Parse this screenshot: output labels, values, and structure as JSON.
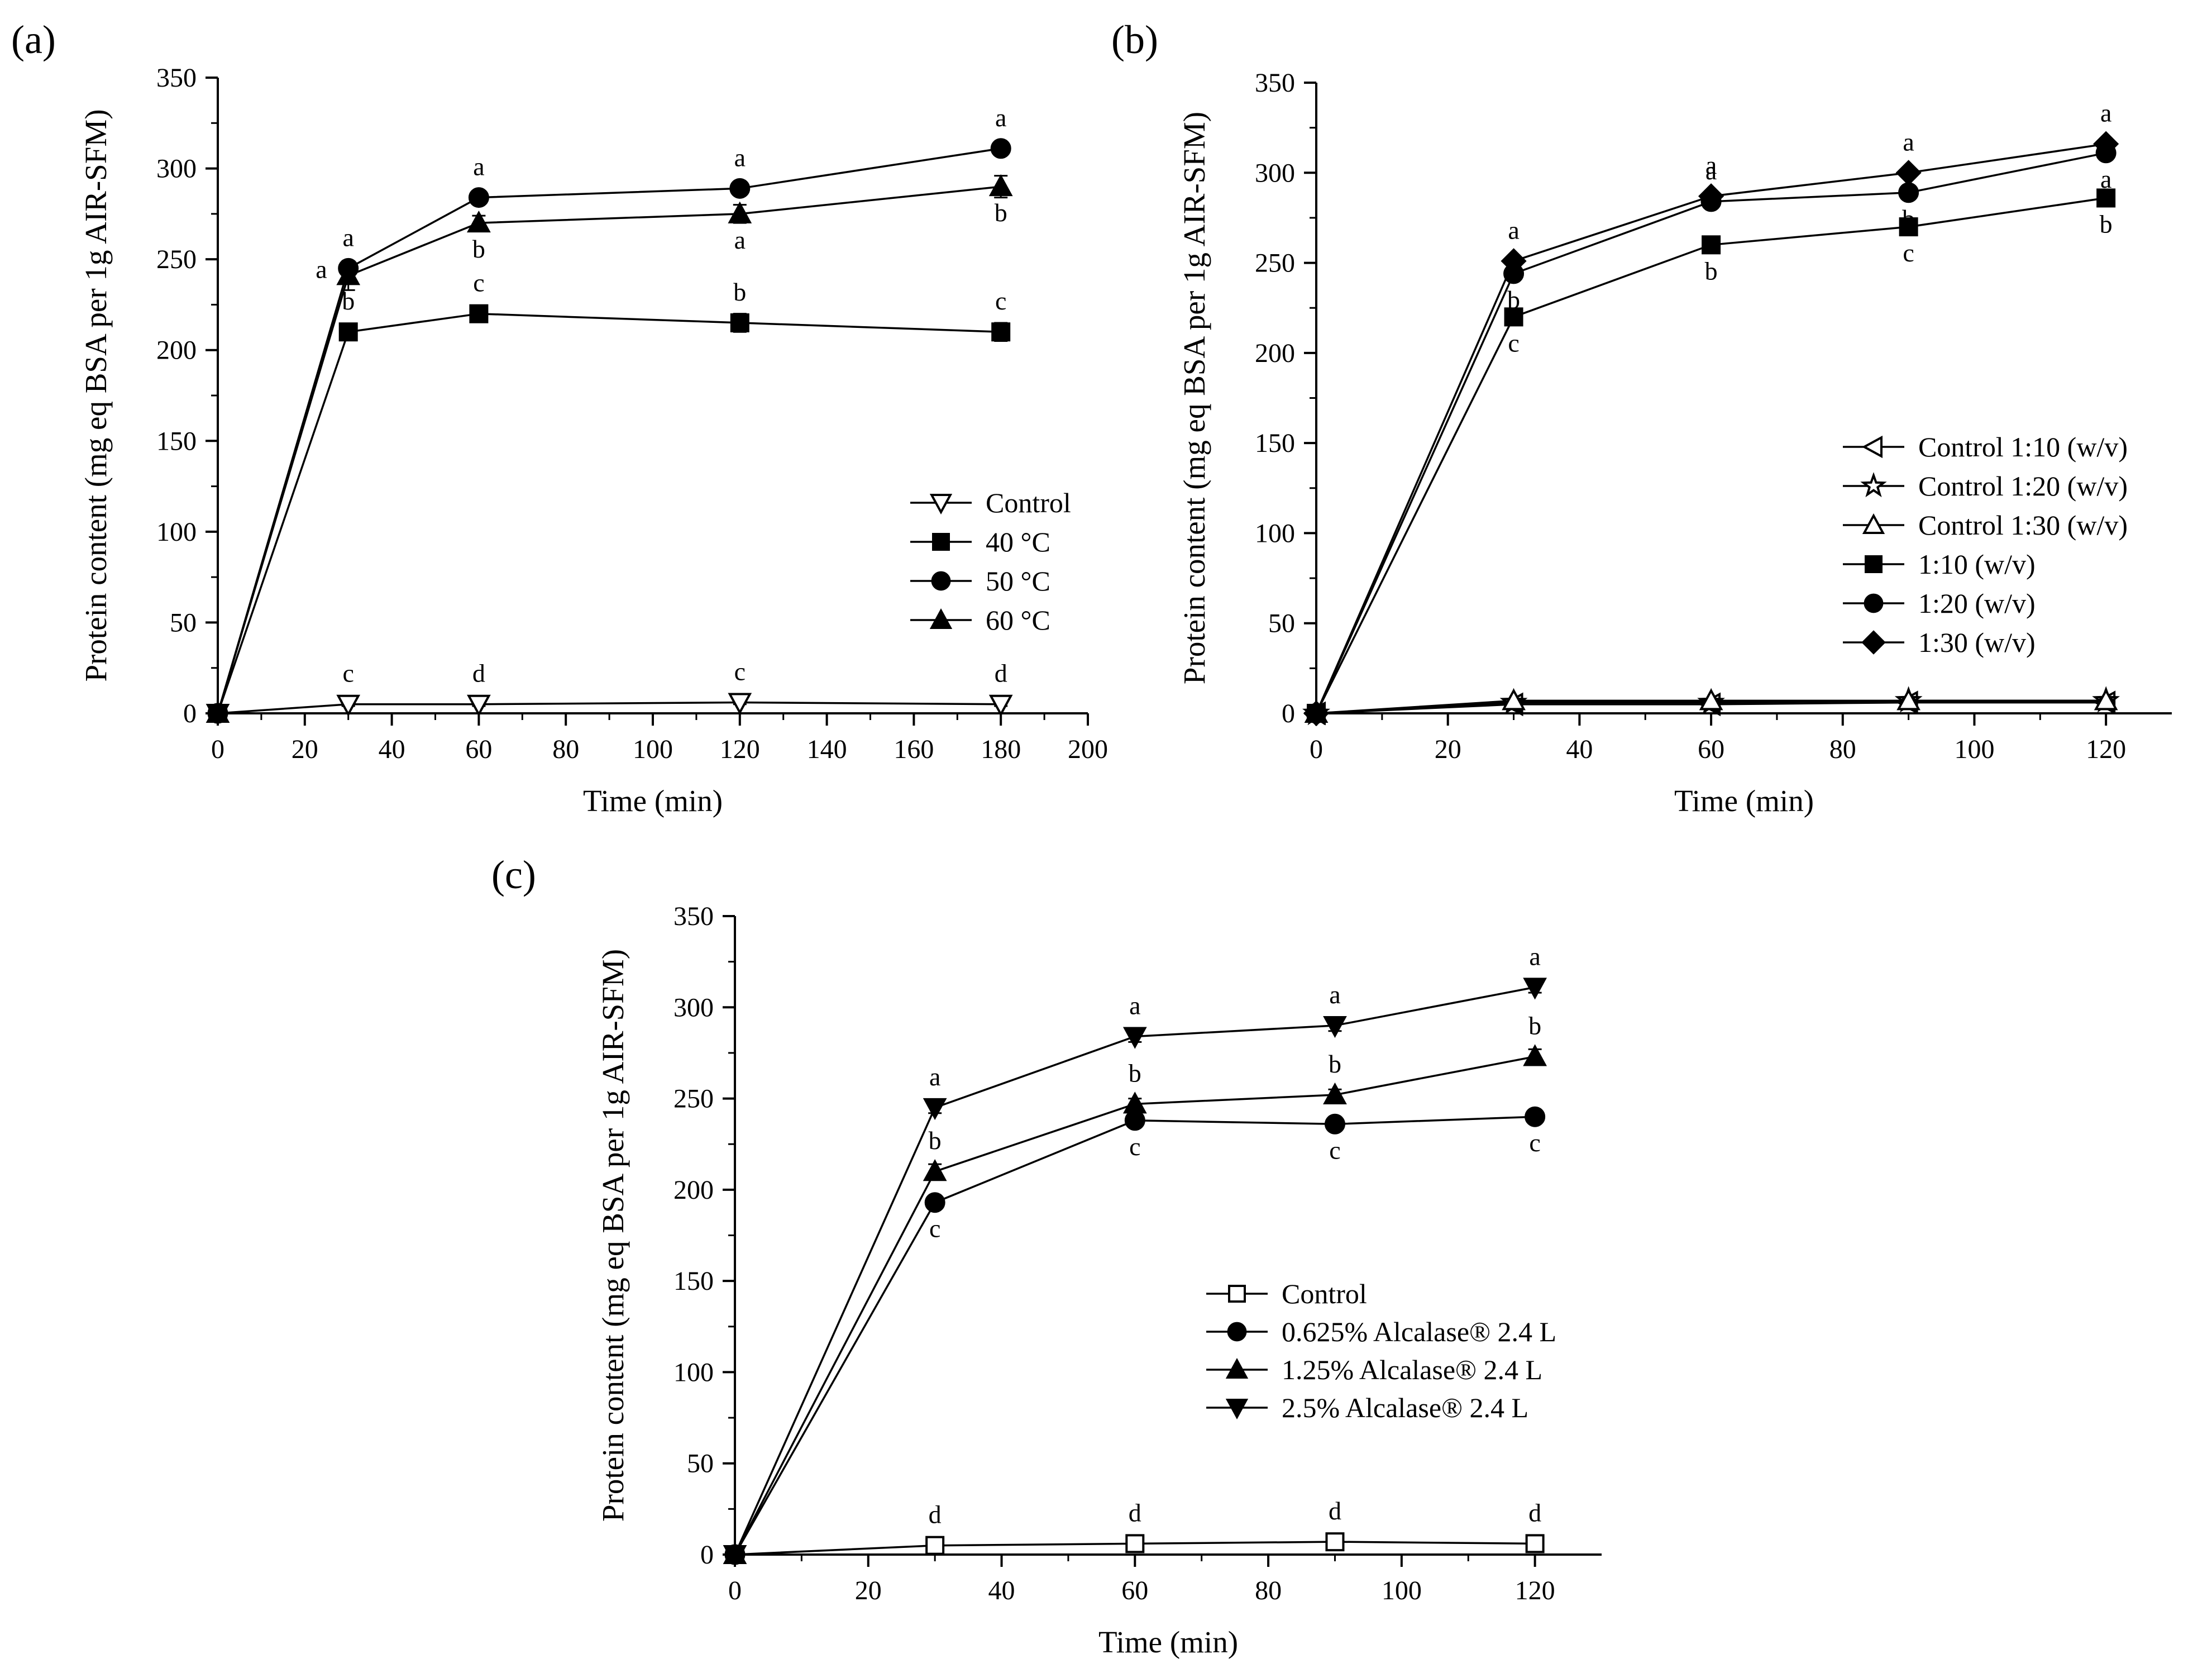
{
  "chart_data": [
    {
      "type": "line",
      "panel": "(a)",
      "xlabel": "Time (min)",
      "ylabel": "Protein content (mg eq BSA per 1g AIR-SFM)",
      "xlim": [
        0,
        200
      ],
      "ylim": [
        0,
        350
      ],
      "xticks": [
        0,
        20,
        40,
        60,
        80,
        100,
        120,
        140,
        160,
        180,
        200
      ],
      "yticks": [
        0,
        50,
        100,
        150,
        200,
        250,
        300,
        350
      ],
      "legend_position": "center-right",
      "series": [
        {
          "name": "Control",
          "marker": "triangle-down-open",
          "x": [
            0,
            30,
            60,
            120,
            180
          ],
          "y": [
            0,
            5,
            5,
            6,
            5
          ],
          "err": [
            0,
            1,
            1,
            1,
            1
          ],
          "letters": [
            "",
            "c",
            "d",
            "c",
            "d"
          ],
          "letter_pos": [
            "",
            "above",
            "above",
            "above",
            "above"
          ]
        },
        {
          "name": "40 °C",
          "marker": "square",
          "x": [
            0,
            30,
            60,
            120,
            180
          ],
          "y": [
            0,
            210,
            220,
            215,
            210
          ],
          "err": [
            0,
            3,
            3,
            5,
            5
          ],
          "letters": [
            "",
            "b",
            "c",
            "b",
            "c"
          ],
          "letter_pos": [
            "",
            "above",
            "above",
            "above",
            "above"
          ]
        },
        {
          "name": "50 °C",
          "marker": "circle",
          "x": [
            0,
            30,
            60,
            120,
            180
          ],
          "y": [
            0,
            245,
            284,
            289,
            311
          ],
          "err": [
            0,
            3,
            3,
            3,
            3
          ],
          "letters": [
            "",
            "a",
            "a",
            "a",
            "a"
          ],
          "letter_pos": [
            "",
            "above",
            "above",
            "above",
            "above"
          ]
        },
        {
          "name": "60 °C",
          "marker": "triangle-up",
          "x": [
            0,
            30,
            60,
            120,
            180
          ],
          "y": [
            0,
            241,
            270,
            275,
            290
          ],
          "err": [
            0,
            8,
            4,
            5,
            6
          ],
          "letters": [
            "",
            "a",
            "b",
            "a",
            "b"
          ],
          "letter_pos": [
            "",
            "left",
            "below",
            "below",
            "below"
          ]
        }
      ]
    },
    {
      "type": "line",
      "panel": "(b)",
      "xlabel": "Time (min)",
      "ylabel": "Protein content (mg eq BSA per 1g AIR-SFM)",
      "xlim": [
        0,
        130
      ],
      "ylim": [
        0,
        350
      ],
      "xticks": [
        0,
        20,
        40,
        60,
        80,
        100,
        120
      ],
      "yticks": [
        0,
        50,
        100,
        150,
        200,
        250,
        300,
        350
      ],
      "legend_position": "center-right",
      "series": [
        {
          "name": "Control 1:10 (w/v)",
          "marker": "triangle-left-open",
          "x": [
            0,
            30,
            60,
            90,
            120
          ],
          "y": [
            0,
            5,
            5,
            6,
            6
          ],
          "err": [
            0,
            1,
            1,
            1,
            1
          ],
          "letters": [
            "",
            "",
            "",
            "",
            ""
          ],
          "letter_pos": [
            "",
            "",
            "",
            "",
            ""
          ]
        },
        {
          "name": "Control 1:20 (w/v)",
          "marker": "star-open",
          "x": [
            0,
            30,
            60,
            90,
            120
          ],
          "y": [
            0,
            6,
            6,
            7,
            7
          ],
          "err": [
            0,
            1,
            1,
            1,
            1
          ],
          "letters": [
            "",
            "",
            "",
            "",
            ""
          ],
          "letter_pos": [
            "",
            "",
            "",
            "",
            ""
          ]
        },
        {
          "name": "Control 1:30 (w/v)",
          "marker": "triangle-up-open",
          "x": [
            0,
            30,
            60,
            90,
            120
          ],
          "y": [
            0,
            7,
            7,
            7,
            7
          ],
          "err": [
            0,
            1,
            1,
            1,
            1
          ],
          "letters": [
            "",
            "",
            "",
            "",
            ""
          ],
          "letter_pos": [
            "",
            "",
            "",
            "",
            ""
          ]
        },
        {
          "name": "1:10 (w/v)",
          "marker": "square",
          "x": [
            0,
            30,
            60,
            90,
            120
          ],
          "y": [
            0,
            220,
            260,
            270,
            286
          ],
          "err": [
            0,
            3,
            3,
            3,
            3
          ],
          "letters": [
            "",
            "c",
            "b",
            "c",
            "b"
          ],
          "letter_pos": [
            "",
            "below",
            "below",
            "below",
            "below"
          ]
        },
        {
          "name": "1:20 (w/v)",
          "marker": "circle",
          "x": [
            0,
            30,
            60,
            90,
            120
          ],
          "y": [
            0,
            244,
            284,
            289,
            311
          ],
          "err": [
            0,
            3,
            3,
            3,
            3
          ],
          "letters": [
            "",
            "b",
            "a",
            "b",
            "a"
          ],
          "letter_pos": [
            "",
            "below",
            "above",
            "below",
            "below"
          ]
        },
        {
          "name": "1:30 (w/v)",
          "marker": "diamond",
          "x": [
            0,
            30,
            60,
            90,
            120
          ],
          "y": [
            0,
            251,
            287,
            300,
            316
          ],
          "err": [
            0,
            3,
            3,
            3,
            3
          ],
          "letters": [
            "",
            "a",
            "a",
            "a",
            "a"
          ],
          "letter_pos": [
            "",
            "above",
            "above",
            "above",
            "above"
          ]
        }
      ]
    },
    {
      "type": "line",
      "panel": "(c)",
      "xlabel": "Time (min)",
      "ylabel": "Protein content (mg eq BSA per 1g AIR-SFM)",
      "xlim": [
        0,
        130
      ],
      "ylim": [
        0,
        350
      ],
      "xticks": [
        0,
        20,
        40,
        60,
        80,
        100,
        120
      ],
      "yticks": [
        0,
        50,
        100,
        150,
        200,
        250,
        300,
        350
      ],
      "legend_position": "center-right",
      "series": [
        {
          "name": "Control",
          "marker": "square-open",
          "x": [
            0,
            30,
            60,
            90,
            120
          ],
          "y": [
            0,
            5,
            6,
            7,
            6
          ],
          "err": [
            0,
            1,
            1,
            1,
            1
          ],
          "letters": [
            "",
            "d",
            "d",
            "d",
            "d"
          ],
          "letter_pos": [
            "",
            "above",
            "above",
            "above",
            "above"
          ]
        },
        {
          "name": "0.625%  Alcalase® 2.4 L",
          "marker": "circle",
          "x": [
            0,
            30,
            60,
            90,
            120
          ],
          "y": [
            0,
            193,
            238,
            236,
            240
          ],
          "err": [
            0,
            3,
            3,
            3,
            3
          ],
          "letters": [
            "",
            "c",
            "c",
            "c",
            "c"
          ],
          "letter_pos": [
            "",
            "below",
            "below",
            "below",
            "below"
          ]
        },
        {
          "name": "1.25% Alcalase® 2.4 L",
          "marker": "triangle-up",
          "x": [
            0,
            30,
            60,
            90,
            120
          ],
          "y": [
            0,
            210,
            247,
            252,
            273
          ],
          "err": [
            0,
            4,
            3,
            3,
            4
          ],
          "letters": [
            "",
            "b",
            "b",
            "b",
            "b"
          ],
          "letter_pos": [
            "",
            "above",
            "above",
            "above",
            "above"
          ]
        },
        {
          "name": "2.5% Alcalase® 2.4 L",
          "marker": "triangle-down",
          "x": [
            0,
            30,
            60,
            90,
            120
          ],
          "y": [
            0,
            245,
            284,
            290,
            311
          ],
          "err": [
            0,
            3,
            3,
            3,
            3
          ],
          "letters": [
            "",
            "a",
            "a",
            "a",
            "a"
          ],
          "letter_pos": [
            "",
            "above",
            "above",
            "above",
            "above"
          ]
        }
      ]
    }
  ]
}
